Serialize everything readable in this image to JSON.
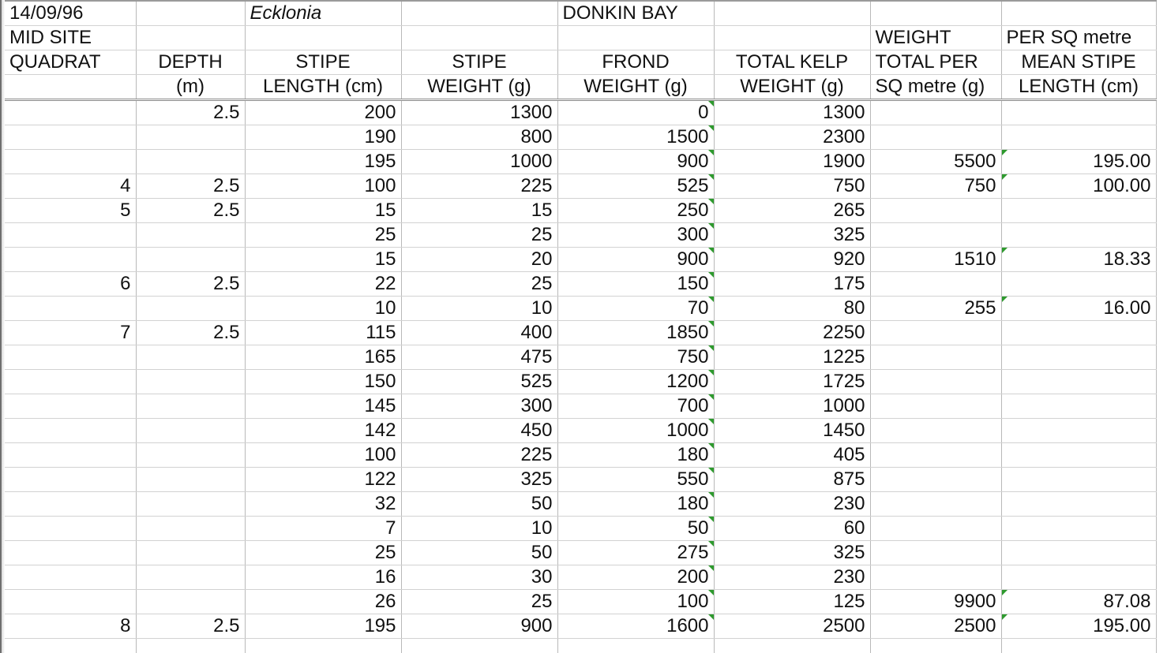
{
  "header": {
    "row1": [
      "14/09/96",
      "",
      "Ecklonia",
      "",
      "DONKIN BAY",
      "",
      "",
      ""
    ],
    "row2": [
      "MID SITE",
      "",
      "",
      "",
      "",
      "",
      "WEIGHT",
      "PER SQ metre"
    ],
    "row3": [
      "QUADRAT",
      "DEPTH",
      "STIPE",
      "STIPE",
      "FROND",
      "TOTAL KELP",
      "TOTAL PER",
      "MEAN STIPE"
    ],
    "row4": [
      "",
      "(m)",
      "LENGTH (cm)",
      "WEIGHT (g)",
      "WEIGHT (g)",
      "WEIGHT (g)",
      "SQ metre (g)",
      "LENGTH (cm)"
    ]
  },
  "rows": [
    [
      "",
      "2.5",
      "200",
      "1300",
      "0",
      "1300",
      "",
      ""
    ],
    [
      "",
      "",
      "190",
      "800",
      "1500",
      "2300",
      "",
      ""
    ],
    [
      "",
      "",
      "195",
      "1000",
      "900",
      "1900",
      "5500",
      "195.00"
    ],
    [
      "4",
      "2.5",
      "100",
      "225",
      "525",
      "750",
      "750",
      "100.00"
    ],
    [
      "5",
      "2.5",
      "15",
      "15",
      "250",
      "265",
      "",
      ""
    ],
    [
      "",
      "",
      "25",
      "25",
      "300",
      "325",
      "",
      ""
    ],
    [
      "",
      "",
      "15",
      "20",
      "900",
      "920",
      "1510",
      "18.33"
    ],
    [
      "6",
      "2.5",
      "22",
      "25",
      "150",
      "175",
      "",
      ""
    ],
    [
      "",
      "",
      "10",
      "10",
      "70",
      "80",
      "255",
      "16.00"
    ],
    [
      "7",
      "2.5",
      "115",
      "400",
      "1850",
      "2250",
      "",
      ""
    ],
    [
      "",
      "",
      "165",
      "475",
      "750",
      "1225",
      "",
      ""
    ],
    [
      "",
      "",
      "150",
      "525",
      "1200",
      "1725",
      "",
      ""
    ],
    [
      "",
      "",
      "145",
      "300",
      "700",
      "1000",
      "",
      ""
    ],
    [
      "",
      "",
      "142",
      "450",
      "1000",
      "1450",
      "",
      ""
    ],
    [
      "",
      "",
      "100",
      "225",
      "180",
      "405",
      "",
      ""
    ],
    [
      "",
      "",
      "122",
      "325",
      "550",
      "875",
      "",
      ""
    ],
    [
      "",
      "",
      "32",
      "50",
      "180",
      "230",
      "",
      ""
    ],
    [
      "",
      "",
      "7",
      "10",
      "50",
      "60",
      "",
      ""
    ],
    [
      "",
      "",
      "25",
      "50",
      "275",
      "325",
      "",
      ""
    ],
    [
      "",
      "",
      "16",
      "30",
      "200",
      "230",
      "",
      ""
    ],
    [
      "",
      "",
      "26",
      "25",
      "100",
      "125",
      "9900",
      "87.08"
    ],
    [
      "8",
      "2.5",
      "195",
      "900",
      "1600",
      "2500",
      "2500",
      "195.00"
    ],
    [
      "",
      "",
      "",
      "",
      "",
      "",
      "",
      ""
    ]
  ],
  "colors": {
    "formula_flag": "#2e9a2e",
    "grid": "#d2d2d2",
    "text": "#111111"
  }
}
